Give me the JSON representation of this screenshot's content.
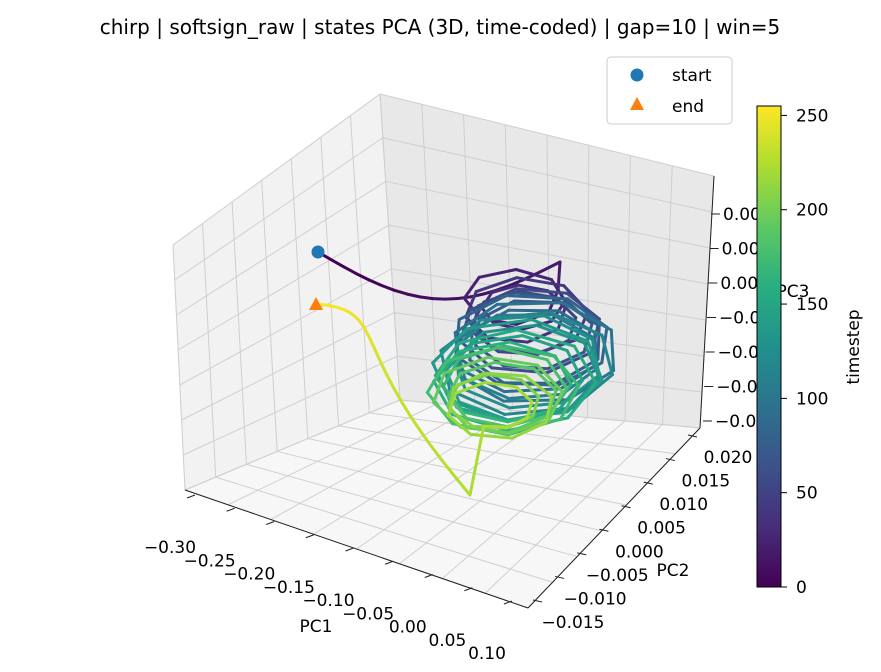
{
  "chart_data": {
    "type": "line",
    "title": "chirp | softsign_raw | states PCA (3D, time-coded) | gap=10 | win=5",
    "x_axis": {
      "label": "PC1",
      "ticks": [
        "−0.30",
        "−0.25",
        "−0.20",
        "−0.15",
        "−0.10",
        "−0.05",
        "0.00",
        "0.05",
        "0.10"
      ]
    },
    "y_axis": {
      "label": "PC2",
      "ticks": [
        "−0.015",
        "−0.010",
        "−0.005",
        "0.000",
        "0.005",
        "0.010",
        "0.015",
        "0.020"
      ]
    },
    "z_axis": {
      "label": "PC3",
      "ticks": [
        "−0.00",
        "−0.00",
        "−0.00",
        "−0.00",
        "0.00",
        "0.00",
        "0.00"
      ]
    },
    "grid": true,
    "colormap": "viridis",
    "colorbar": {
      "label": "timestep",
      "range": [
        0,
        255
      ],
      "ticks": [
        "0",
        "50",
        "100",
        "150",
        "200",
        "250"
      ]
    },
    "legend": {
      "position": "upper-right",
      "entries": [
        {
          "label": "start",
          "marker": "circle",
          "color": "#1f77b4"
        },
        {
          "label": "end",
          "marker": "triangle",
          "color": "#ff7f0e"
        }
      ]
    },
    "n_timesteps": 256,
    "trajectory_description": "3D state trajectory coloured by timestep (viridis): starts at the blue circle near PC1≈-0.30, sweeps toward the centre, then winds in a spiral of loops around PC1≈0.00, returning toward PC1≈-0.30 at the orange triangle (end)."
  }
}
